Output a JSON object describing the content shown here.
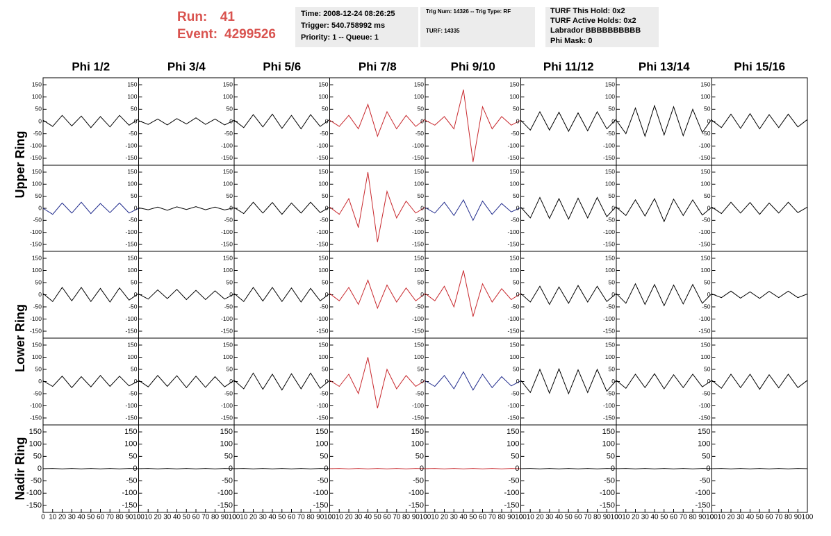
{
  "header": {
    "run_label": "Run:",
    "run": 41,
    "event_label": "Event:",
    "event": 4299526,
    "box1": [
      "Time: 2008-12-24 08:26:25",
      "Trigger: 540.758992 ms",
      "Priority: 1 -- Queue: 1"
    ],
    "box2": [
      "Trig Num: 14326 -- Trig Type: RF",
      "TURF: 14335"
    ],
    "box3": [
      "TURF This Hold: 0x2",
      "TURF Active Holds: 0x2",
      "Labrador BBBBBBBBBB",
      "Phi Mask: 0"
    ]
  },
  "chart_data": {
    "type": "line",
    "columns": [
      "Phi 1/2",
      "Phi 3/4",
      "Phi 5/6",
      "Phi 7/8",
      "Phi 9/10",
      "Phi 11/12",
      "Phi 13/14",
      "Phi 15/16"
    ],
    "ring_labels": [
      "Upper Ring",
      "Lower Ring",
      "Nadir Ring"
    ],
    "x": [
      0,
      10,
      20,
      30,
      40,
      50,
      60,
      70,
      80,
      90,
      100
    ],
    "xlim": [
      0,
      100
    ],
    "xticks": [
      0,
      10,
      20,
      30,
      40,
      50,
      60,
      70,
      80,
      90,
      100
    ],
    "ylim": [
      -170,
      170
    ],
    "yticks": [
      -150,
      -100,
      -50,
      0,
      50,
      100,
      150
    ],
    "rows": [
      {
        "series": [
          {
            "color": "#000000",
            "values": [
              5,
              -20,
              25,
              -18,
              22,
              -25,
              20,
              -22,
              25,
              -15,
              10
            ]
          },
          {
            "color": "#000000",
            "values": [
              3,
              -12,
              10,
              -14,
              12,
              -10,
              15,
              -12,
              10,
              -14,
              5
            ]
          },
          {
            "color": "#000000",
            "values": [
              5,
              -25,
              28,
              -22,
              30,
              -28,
              25,
              -30,
              28,
              -20,
              8
            ]
          },
          {
            "color": "#c8282d",
            "values": [
              5,
              -20,
              25,
              -30,
              70,
              -60,
              40,
              -30,
              25,
              -20,
              10
            ]
          },
          {
            "color": "#c8282d",
            "values": [
              5,
              -15,
              20,
              -30,
              130,
              -165,
              60,
              -30,
              20,
              -15,
              5
            ]
          },
          {
            "color": "#000000",
            "values": [
              5,
              -35,
              40,
              -35,
              38,
              -40,
              35,
              -38,
              40,
              -30,
              10
            ]
          },
          {
            "color": "#000000",
            "values": [
              5,
              -50,
              55,
              -60,
              65,
              -55,
              60,
              -58,
              50,
              -45,
              10
            ]
          },
          {
            "color": "#000000",
            "values": [
              5,
              -25,
              30,
              -28,
              32,
              -30,
              28,
              -25,
              30,
              -22,
              8
            ]
          }
        ]
      },
      {
        "series": [
          {
            "color": "#1f2a8c",
            "values": [
              0,
              -25,
              22,
              -20,
              25,
              -22,
              20,
              -18,
              22,
              -20,
              0
            ]
          },
          {
            "color": "#000000",
            "values": [
              2,
              -6,
              5,
              -8,
              6,
              -5,
              7,
              -6,
              5,
              -7,
              2
            ]
          },
          {
            "color": "#000000",
            "values": [
              3,
              -22,
              25,
              -20,
              24,
              -25,
              22,
              -20,
              25,
              -18,
              5
            ]
          },
          {
            "color": "#c8282d",
            "values": [
              5,
              -25,
              40,
              -80,
              150,
              -140,
              70,
              -40,
              30,
              -20,
              5
            ]
          },
          {
            "color": "#1f2a8c",
            "values": [
              3,
              -20,
              25,
              -30,
              35,
              -50,
              30,
              -25,
              20,
              -15,
              3
            ]
          },
          {
            "color": "#000000",
            "values": [
              5,
              -40,
              45,
              -42,
              40,
              -45,
              42,
              -40,
              45,
              -35,
              8
            ]
          },
          {
            "color": "#000000",
            "values": [
              5,
              -30,
              35,
              -32,
              40,
              -55,
              38,
              -30,
              35,
              -28,
              5
            ]
          },
          {
            "color": "#000000",
            "values": [
              5,
              -22,
              25,
              -20,
              24,
              -25,
              22,
              -20,
              25,
              -18,
              5
            ]
          }
        ]
      },
      {
        "series": [
          {
            "color": "#000000",
            "values": [
              5,
              -28,
              30,
              -25,
              30,
              -28,
              26,
              -30,
              28,
              -22,
              5
            ]
          },
          {
            "color": "#000000",
            "values": [
              3,
              -18,
              20,
              -16,
              22,
              -20,
              18,
              -20,
              16,
              -18,
              3
            ]
          },
          {
            "color": "#000000",
            "values": [
              5,
              -28,
              30,
              -26,
              30,
              -28,
              28,
              -30,
              26,
              -25,
              5
            ]
          },
          {
            "color": "#c8282d",
            "values": [
              5,
              -25,
              30,
              -40,
              60,
              -55,
              40,
              -30,
              28,
              -25,
              5
            ]
          },
          {
            "color": "#c8282d",
            "values": [
              5,
              -25,
              35,
              -50,
              100,
              -90,
              45,
              -30,
              25,
              -20,
              5
            ]
          },
          {
            "color": "#000000",
            "values": [
              5,
              -30,
              35,
              -40,
              32,
              -35,
              38,
              -30,
              35,
              -28,
              5
            ]
          },
          {
            "color": "#000000",
            "values": [
              5,
              -35,
              45,
              -40,
              42,
              -45,
              40,
              -38,
              42,
              -35,
              5
            ]
          },
          {
            "color": "#000000",
            "values": [
              3,
              -12,
              15,
              -14,
              12,
              -15,
              14,
              -12,
              15,
              -12,
              3
            ]
          }
        ]
      },
      {
        "series": [
          {
            "color": "#000000",
            "values": [
              3,
              -20,
              22,
              -25,
              20,
              -22,
              25,
              -20,
              22,
              -18,
              3
            ]
          },
          {
            "color": "#000000",
            "values": [
              5,
              -22,
              25,
              -20,
              24,
              -25,
              22,
              -24,
              20,
              -22,
              5
            ]
          },
          {
            "color": "#000000",
            "values": [
              5,
              -30,
              35,
              -32,
              30,
              -35,
              32,
              -30,
              35,
              -28,
              5
            ]
          },
          {
            "color": "#c8282d",
            "values": [
              5,
              -20,
              30,
              -50,
              100,
              -110,
              50,
              -30,
              25,
              -20,
              5
            ]
          },
          {
            "color": "#1f2a8c",
            "values": [
              3,
              -20,
              25,
              -30,
              40,
              -35,
              30,
              -25,
              20,
              -18,
              3
            ]
          },
          {
            "color": "#000000",
            "values": [
              5,
              -45,
              50,
              -48,
              52,
              -50,
              48,
              -45,
              50,
              -40,
              5
            ]
          },
          {
            "color": "#000000",
            "values": [
              5,
              -28,
              30,
              -25,
              32,
              -30,
              28,
              -25,
              30,
              -22,
              5
            ]
          },
          {
            "color": "#000000",
            "values": [
              5,
              -28,
              30,
              -25,
              30,
              -32,
              28,
              -26,
              30,
              -25,
              5
            ]
          }
        ]
      },
      {
        "series": [
          {
            "color": "#000000",
            "values": [
              0,
              1,
              -1,
              1,
              -1,
              1,
              -1,
              1,
              -1,
              1,
              0
            ]
          },
          {
            "color": "#000000",
            "values": [
              0,
              1,
              -1,
              1,
              -1,
              1,
              -1,
              1,
              -1,
              1,
              0
            ]
          },
          {
            "color": "#000000",
            "values": [
              0,
              1,
              -1,
              1,
              -1,
              1,
              -1,
              1,
              -1,
              1,
              0
            ]
          },
          {
            "color": "#c8282d",
            "values": [
              0,
              1,
              -1,
              1,
              -1,
              1,
              -1,
              1,
              -1,
              1,
              0
            ]
          },
          {
            "color": "#c8282d",
            "values": [
              0,
              1,
              -1,
              1,
              -1,
              1,
              -1,
              1,
              -1,
              1,
              0
            ]
          },
          {
            "color": "#000000",
            "values": [
              0,
              1,
              -1,
              1,
              -1,
              1,
              -1,
              1,
              -1,
              1,
              0
            ]
          },
          {
            "color": "#000000",
            "values": [
              0,
              1,
              -1,
              1,
              -1,
              1,
              -1,
              1,
              -1,
              1,
              0
            ]
          },
          {
            "color": "#000000",
            "values": [
              0,
              1,
              -1,
              1,
              -1,
              1,
              -1,
              1,
              -1,
              1,
              0
            ]
          }
        ]
      }
    ]
  }
}
